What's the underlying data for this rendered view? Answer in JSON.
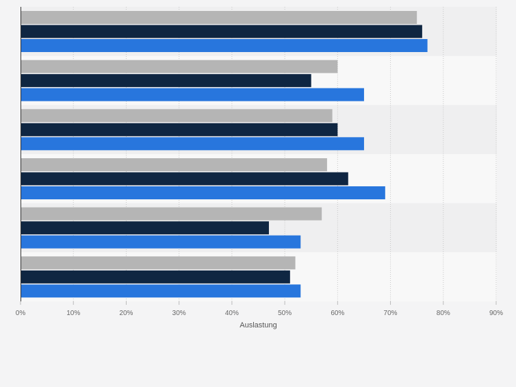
{
  "chart_data": {
    "type": "bar",
    "orientation": "horizontal",
    "categories": [
      "",
      "",
      "",
      "",
      "",
      ""
    ],
    "series": [
      {
        "name": "",
        "color": "#b5b5b5",
        "values": [
          75,
          60,
          59,
          58,
          57,
          52
        ]
      },
      {
        "name": "",
        "color": "#0f2642",
        "values": [
          76,
          55,
          60,
          62,
          47,
          51
        ]
      },
      {
        "name": "",
        "color": "#2876dd",
        "values": [
          77,
          65,
          65,
          69,
          53,
          53
        ]
      }
    ],
    "xticks": [
      "0%",
      "10%",
      "20%",
      "30%",
      "40%",
      "50%",
      "60%",
      "70%",
      "80%",
      "90%"
    ],
    "xlim": [
      0,
      90
    ],
    "xlabel": "Auslastung",
    "grid": true,
    "legend": "none"
  },
  "colors": {
    "background": "#f4f4f5",
    "band_dark": "#efeff0",
    "band_light": "#f8f8f8",
    "gridline": "#c8c8c8",
    "axis": "#333333",
    "tick_text": "#666666"
  }
}
